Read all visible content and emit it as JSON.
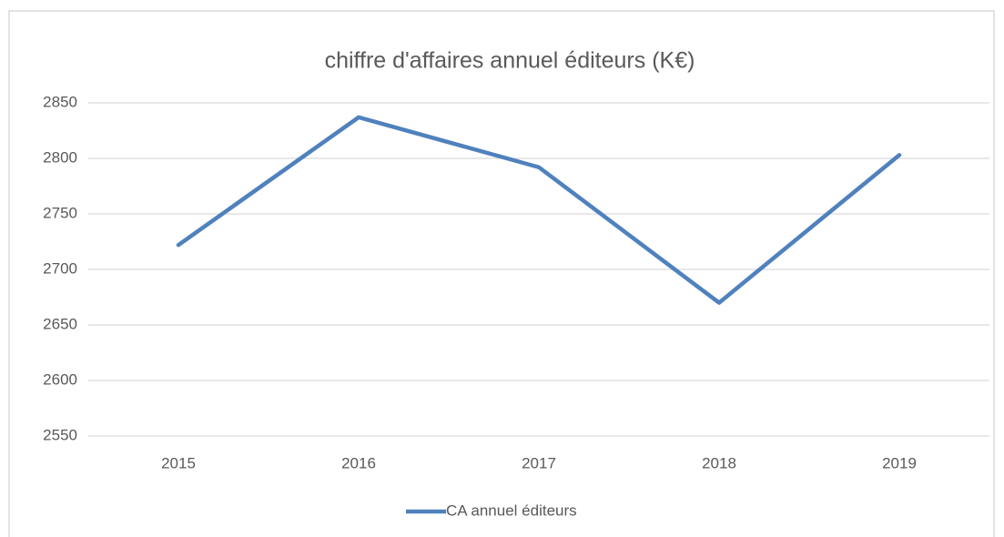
{
  "chart_data": {
    "type": "line",
    "title": "chiffre d'affaires annuel éditeurs (K€)",
    "categories": [
      "2015",
      "2016",
      "2017",
      "2018",
      "2019"
    ],
    "series": [
      {
        "name": "CA annuel éditeurs",
        "color": "#4f81bd",
        "values": [
          2722,
          2837,
          2792,
          2670,
          2803
        ]
      }
    ],
    "ylim": [
      2550,
      2850
    ],
    "yticks": [
      2550,
      2600,
      2650,
      2700,
      2750,
      2800,
      2850
    ],
    "grid": true,
    "legend": "bottom"
  }
}
